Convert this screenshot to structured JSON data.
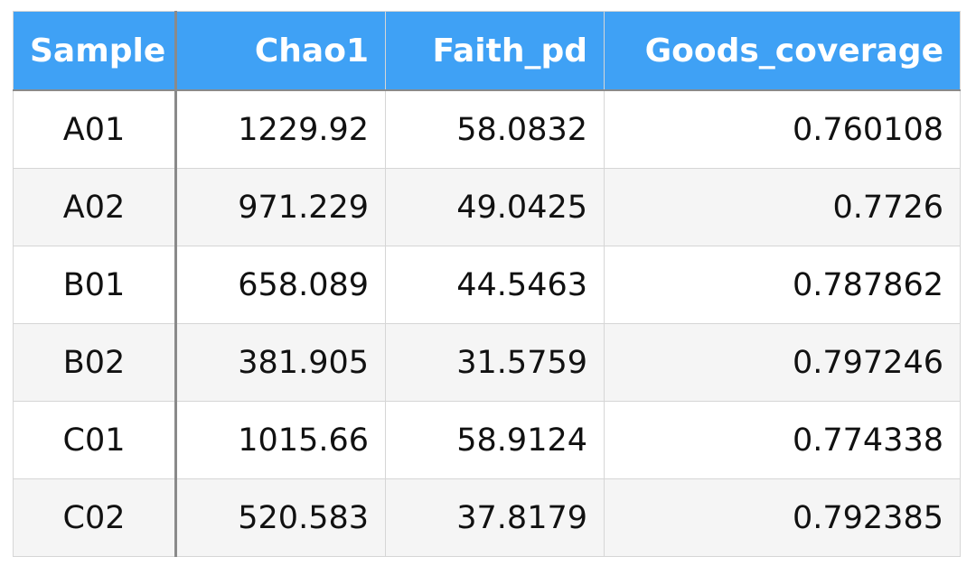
{
  "chart_data": {
    "type": "table",
    "columns": [
      "Sample",
      "Chao1",
      "Faith_pd",
      "Goods_coverage"
    ],
    "rows": [
      [
        "A01",
        "1229.92",
        "58.0832",
        "0.760108"
      ],
      [
        "A02",
        "971.229",
        "49.0425",
        "0.7726"
      ],
      [
        "B01",
        "658.089",
        "44.5463",
        "0.787862"
      ],
      [
        "B02",
        "381.905",
        "31.5759",
        "0.797246"
      ],
      [
        "C01",
        "1015.66",
        "58.9124",
        "0.774338"
      ],
      [
        "C02",
        "520.583",
        "37.8179",
        "0.792385"
      ]
    ],
    "colors": {
      "header_bg": "#3fa1f5",
      "header_text": "#ffffff",
      "stripe": "#f5f5f5"
    }
  }
}
